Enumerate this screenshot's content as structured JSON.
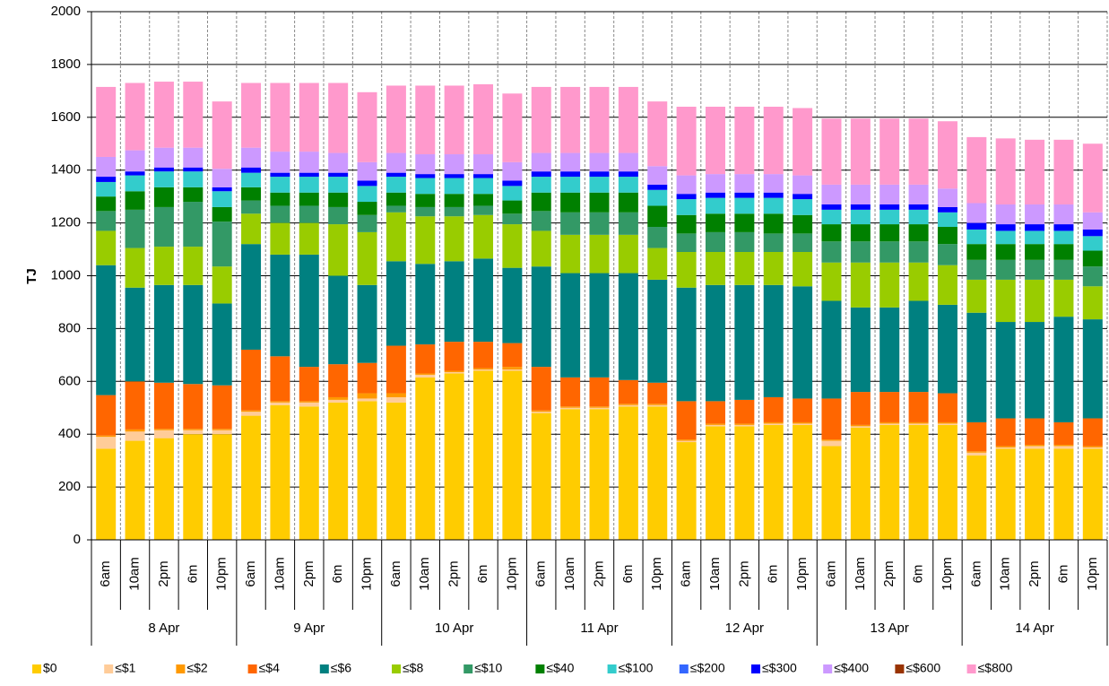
{
  "chart_data": {
    "type": "stacked-bar",
    "y_label": "TJ",
    "categories": [
      "6am",
      "10am",
      "2pm",
      "6m",
      "10pm",
      "6am",
      "10am",
      "2pm",
      "6m",
      "10pm",
      "6am",
      "10am",
      "2pm",
      "6m",
      "10pm",
      "6am",
      "10am",
      "2pm",
      "6m",
      "10pm",
      "6am",
      "10am",
      "2pm",
      "6m",
      "10pm",
      "6am",
      "10am",
      "2pm",
      "6m",
      "10pm",
      "6am",
      "10am",
      "2pm",
      "6m",
      "10pm"
    ],
    "groups": [
      "8 Apr",
      "9 Apr",
      "10 Apr",
      "11 Apr",
      "12 Apr",
      "13 Apr",
      "14 Apr"
    ],
    "ylim": [
      0,
      2000
    ],
    "yticks": [
      0,
      200,
      400,
      600,
      800,
      1000,
      1200,
      1400,
      1600,
      1800,
      2000
    ],
    "grid": true,
    "series": [
      {
        "name": "$0",
        "color": "#FFCC00",
        "values": [
          345,
          375,
          385,
          400,
          400,
          470,
          510,
          505,
          520,
          525,
          520,
          615,
          630,
          640,
          640,
          480,
          495,
          495,
          505,
          505,
          370,
          430,
          430,
          435,
          435,
          355,
          425,
          435,
          435,
          435,
          320,
          345,
          345,
          345,
          345
        ]
      },
      {
        "name": "≤$1",
        "color": "#FFCC99",
        "values": [
          45,
          35,
          30,
          15,
          15,
          15,
          10,
          15,
          10,
          10,
          20,
          10,
          5,
          5,
          5,
          5,
          5,
          5,
          5,
          5,
          5,
          5,
          5,
          5,
          5,
          20,
          5,
          5,
          5,
          5,
          10,
          5,
          10,
          10,
          5
        ]
      },
      {
        "name": "≤$2",
        "color": "#FF9900",
        "values": [
          5,
          8,
          5,
          5,
          5,
          5,
          5,
          5,
          10,
          20,
          15,
          5,
          5,
          5,
          10,
          5,
          5,
          5,
          5,
          5,
          5,
          5,
          5,
          5,
          5,
          5,
          5,
          5,
          5,
          5,
          5,
          5,
          5,
          5,
          5
        ]
      },
      {
        "name": "≤$4",
        "color": "#FF6600",
        "values": [
          153,
          182,
          175,
          170,
          165,
          230,
          170,
          130,
          125,
          115,
          180,
          110,
          110,
          100,
          90,
          165,
          110,
          110,
          90,
          80,
          145,
          85,
          90,
          95,
          90,
          155,
          125,
          115,
          115,
          110,
          110,
          105,
          100,
          85,
          105
        ]
      },
      {
        "name": "≤$6",
        "color": "#008080",
        "values": [
          492,
          355,
          370,
          375,
          310,
          400,
          385,
          425,
          335,
          295,
          320,
          305,
          305,
          315,
          285,
          380,
          395,
          395,
          405,
          390,
          430,
          440,
          435,
          425,
          425,
          370,
          320,
          320,
          345,
          335,
          415,
          365,
          365,
          400,
          375
        ]
      },
      {
        "name": "≤$8",
        "color": "#99CC00",
        "values": [
          130,
          150,
          145,
          145,
          140,
          115,
          120,
          120,
          195,
          200,
          185,
          180,
          170,
          165,
          165,
          135,
          145,
          145,
          145,
          120,
          135,
          125,
          125,
          125,
          130,
          145,
          170,
          170,
          145,
          150,
          125,
          160,
          160,
          140,
          125
        ]
      },
      {
        "name": "≤$10",
        "color": "#339966",
        "values": [
          75,
          145,
          150,
          170,
          170,
          50,
          65,
          65,
          65,
          65,
          25,
          35,
          35,
          35,
          40,
          75,
          85,
          85,
          85,
          80,
          70,
          75,
          75,
          70,
          70,
          80,
          80,
          80,
          80,
          80,
          75,
          75,
          75,
          75,
          75
        ]
      },
      {
        "name": "≤$40",
        "color": "#008000",
        "values": [
          55,
          70,
          75,
          55,
          55,
          50,
          50,
          50,
          55,
          50,
          50,
          50,
          50,
          45,
          50,
          70,
          75,
          75,
          75,
          80,
          70,
          70,
          70,
          75,
          70,
          65,
          65,
          65,
          65,
          65,
          60,
          60,
          60,
          60,
          60
        ]
      },
      {
        "name": "≤$100",
        "color": "#33CCCC",
        "values": [
          55,
          60,
          60,
          60,
          60,
          55,
          60,
          60,
          60,
          60,
          60,
          60,
          60,
          60,
          55,
          60,
          60,
          60,
          60,
          60,
          60,
          60,
          60,
          60,
          60,
          55,
          55,
          55,
          55,
          55,
          55,
          50,
          50,
          50,
          55
        ]
      },
      {
        "name": "≤$200",
        "color": "#3366FF",
        "values": [
          0,
          0,
          0,
          0,
          0,
          0,
          0,
          0,
          0,
          0,
          0,
          0,
          0,
          0,
          0,
          0,
          0,
          0,
          0,
          0,
          0,
          0,
          0,
          0,
          0,
          0,
          0,
          0,
          0,
          0,
          0,
          0,
          0,
          0,
          0
        ]
      },
      {
        "name": "≤$300",
        "color": "#0000FF",
        "values": [
          20,
          15,
          15,
          15,
          15,
          20,
          15,
          15,
          15,
          20,
          15,
          15,
          15,
          15,
          20,
          20,
          20,
          20,
          20,
          20,
          20,
          20,
          20,
          20,
          20,
          20,
          20,
          20,
          20,
          20,
          25,
          25,
          25,
          25,
          25
        ]
      },
      {
        "name": "≤$400",
        "color": "#CC99FF",
        "values": [
          75,
          80,
          75,
          75,
          70,
          75,
          80,
          80,
          75,
          70,
          75,
          75,
          75,
          75,
          70,
          70,
          70,
          70,
          70,
          70,
          70,
          70,
          70,
          70,
          70,
          75,
          75,
          75,
          75,
          70,
          75,
          75,
          75,
          75,
          65
        ]
      },
      {
        "name": "≤$600",
        "color": "#993300",
        "values": [
          0,
          0,
          0,
          0,
          0,
          0,
          0,
          0,
          0,
          0,
          0,
          0,
          0,
          0,
          0,
          0,
          0,
          0,
          0,
          0,
          0,
          0,
          0,
          0,
          0,
          0,
          0,
          0,
          0,
          0,
          0,
          0,
          0,
          0,
          0
        ]
      },
      {
        "name": "≤$800",
        "color": "#FF99CC",
        "values": [
          265,
          255,
          250,
          250,
          255,
          245,
          260,
          260,
          265,
          265,
          255,
          260,
          260,
          265,
          260,
          250,
          250,
          250,
          250,
          245,
          260,
          255,
          255,
          255,
          255,
          250,
          250,
          250,
          250,
          255,
          250,
          250,
          245,
          245,
          260
        ]
      }
    ]
  }
}
